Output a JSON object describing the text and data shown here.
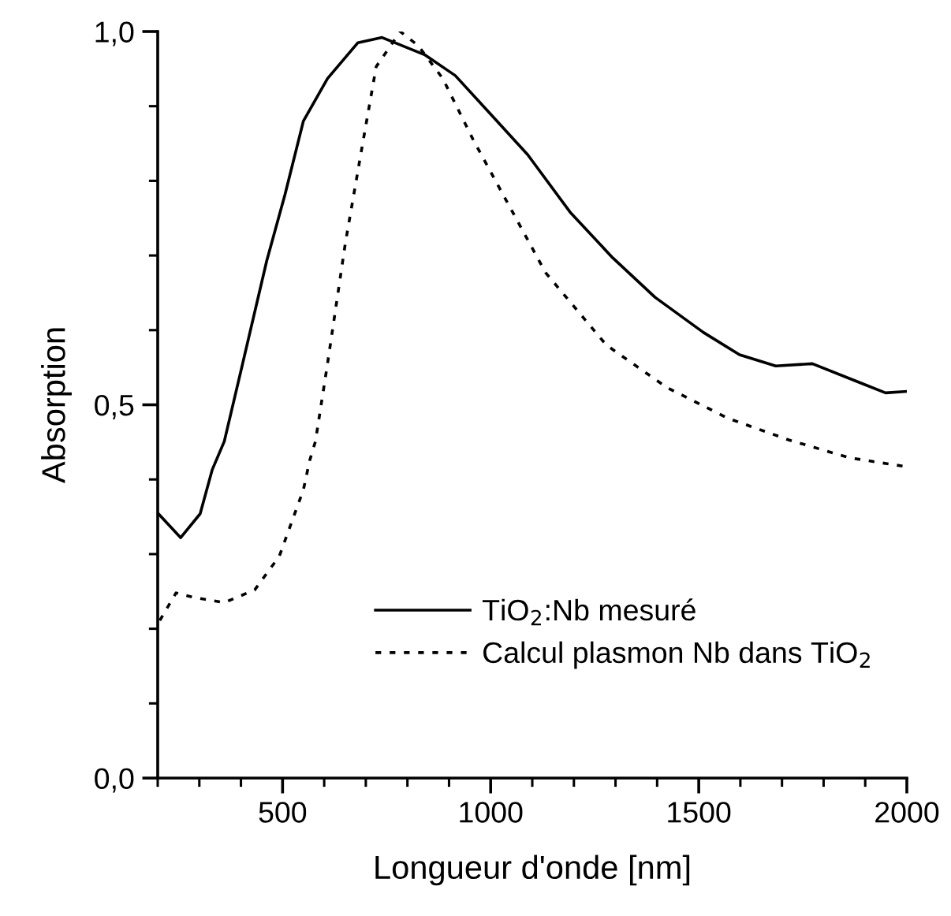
{
  "chart_data": {
    "type": "line",
    "xlabel": "Longueur d'onde [nm]",
    "ylabel": "Absorption",
    "xlim": [
      200,
      2000
    ],
    "xticks": [
      500,
      1000,
      1500,
      2000
    ],
    "ylim": [
      0,
      1.0
    ],
    "yticks": [
      {
        "value": 0,
        "label": "0,0"
      },
      {
        "value": 0.5,
        "label": "0,5"
      },
      {
        "value": 1.0,
        "label": "1,0"
      }
    ],
    "grid": false,
    "legend": "bottom right",
    "marker": "none",
    "series": [
      {
        "name": "TiO$_{2}$:Nb mesuré",
        "color": "#000000",
        "line_style": "solid",
        "x": [
          200,
          255,
          302,
          331,
          360,
          404,
          462,
          506,
          550,
          608,
          681,
          739,
          841,
          915,
          1002,
          1089,
          1191,
          1293,
          1395,
          1511,
          1598,
          1685,
          1773,
          1890,
          1949,
          2000
        ],
        "values": [
          0.355,
          0.322,
          0.354,
          0.413,
          0.451,
          0.555,
          0.693,
          0.782,
          0.88,
          0.937,
          0.985,
          0.992,
          0.969,
          0.941,
          0.888,
          0.835,
          0.758,
          0.697,
          0.644,
          0.597,
          0.567,
          0.552,
          0.555,
          0.529,
          0.516,
          0.518
        ]
      },
      {
        "name": "Calcul plasmon Nb dans TiO$_{2}$",
        "color": "#000000",
        "line_style": "dotted",
        "x": [
          205,
          244,
          287,
          360,
          433,
          492,
          550,
          565,
          579,
          608,
          651,
          689,
          725,
          783,
          826,
          885,
          958,
          1045,
          1132,
          1278,
          1424,
          1570,
          1716,
          1862,
          2000
        ],
        "values": [
          0.211,
          0.248,
          0.242,
          0.235,
          0.252,
          0.297,
          0.386,
          0.425,
          0.451,
          0.555,
          0.717,
          0.839,
          0.953,
          1.0,
          0.981,
          0.937,
          0.855,
          0.766,
          0.677,
          0.58,
          0.523,
          0.482,
          0.453,
          0.429,
          0.417
        ]
      }
    ]
  }
}
